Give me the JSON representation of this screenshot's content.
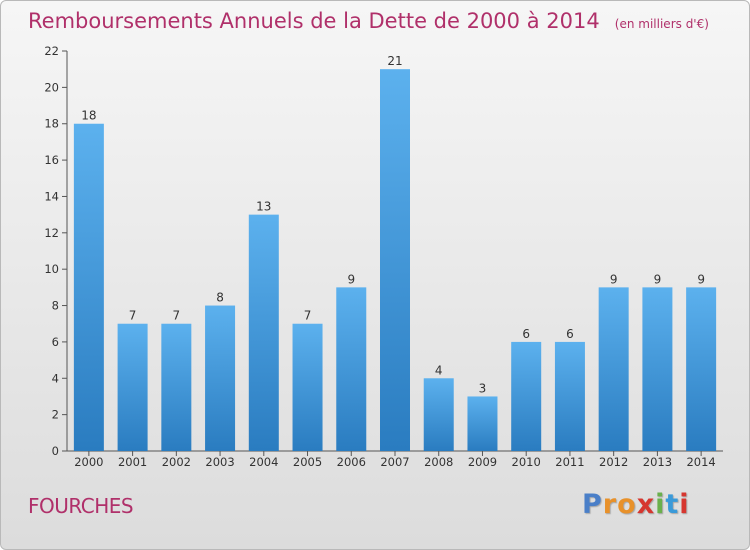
{
  "chart_data": {
    "type": "bar",
    "title": "Remboursements Annuels de la Dette de 2000 à 2014",
    "unit_note": "(en milliers d'€)",
    "categories": [
      "2000",
      "2001",
      "2002",
      "2003",
      "2004",
      "2005",
      "2006",
      "2007",
      "2008",
      "2009",
      "2010",
      "2011",
      "2012",
      "2013",
      "2014"
    ],
    "values": [
      18,
      7,
      7,
      8,
      13,
      7,
      9,
      21,
      4,
      3,
      6,
      6,
      9,
      9,
      9
    ],
    "ylim": [
      0,
      22
    ],
    "yticks": [
      0,
      2,
      4,
      6,
      8,
      10,
      12,
      14,
      16,
      18,
      20,
      22
    ],
    "grid": false,
    "bar_color": "#3f95d8",
    "title_color": "#b0306a"
  },
  "footer": {
    "commune": "FOURCHES",
    "brand": [
      "P",
      "r",
      "o",
      "x",
      "i",
      "t",
      "i"
    ],
    "brand_colors": [
      "#4a7fc8",
      "#e8912a",
      "#e8912a",
      "#d6362f",
      "#6ab04c",
      "#3a9ad9",
      "#d6362f"
    ]
  }
}
